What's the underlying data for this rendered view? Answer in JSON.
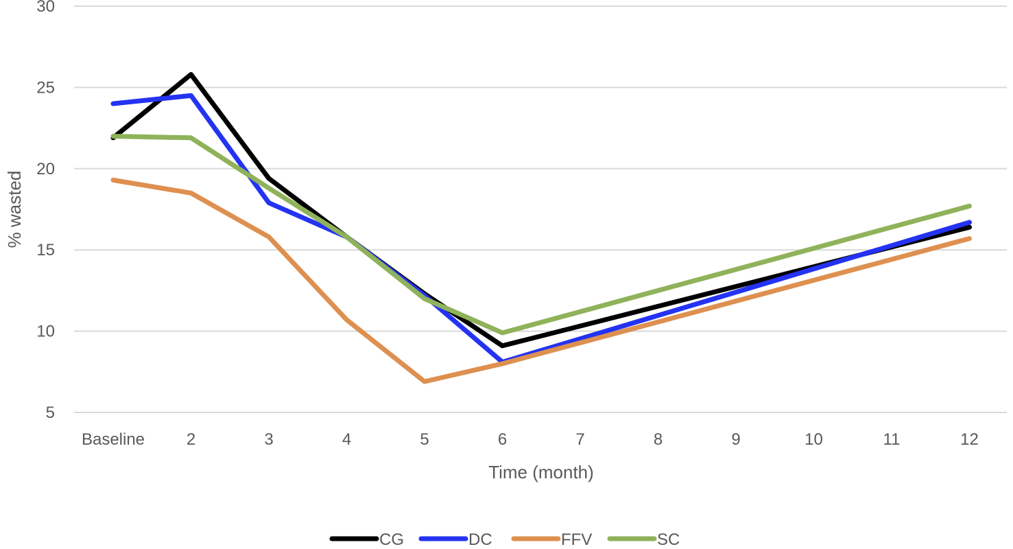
{
  "chart_data": {
    "type": "line",
    "title": "",
    "xlabel": "Time (month)",
    "ylabel": "% wasted",
    "ylim": [
      5,
      30
    ],
    "yticks": [
      5,
      10,
      15,
      20,
      25,
      30
    ],
    "grid": true,
    "legend_position": "bottom",
    "categories": [
      "Baseline",
      "2",
      "3",
      "4",
      "5",
      "6",
      "7",
      "8",
      "9",
      "10",
      "11",
      "12"
    ],
    "series": [
      {
        "name": "CG",
        "color": "#000000",
        "values": [
          21.9,
          25.8,
          19.4,
          15.8,
          12.3,
          9.1,
          null,
          null,
          null,
          null,
          null,
          16.4
        ]
      },
      {
        "name": "DC",
        "color": "#2433f2",
        "values": [
          24.0,
          24.5,
          17.9,
          15.8,
          12.2,
          8.1,
          null,
          null,
          null,
          null,
          null,
          16.7
        ]
      },
      {
        "name": "FFV",
        "color": "#de9050",
        "values": [
          19.3,
          18.5,
          15.8,
          10.7,
          6.9,
          8.0,
          null,
          null,
          null,
          null,
          null,
          15.7
        ]
      },
      {
        "name": "SC",
        "color": "#8fb25a",
        "values": [
          22.0,
          21.9,
          18.8,
          15.8,
          12.0,
          9.9,
          null,
          null,
          null,
          null,
          null,
          17.7
        ]
      }
    ]
  }
}
